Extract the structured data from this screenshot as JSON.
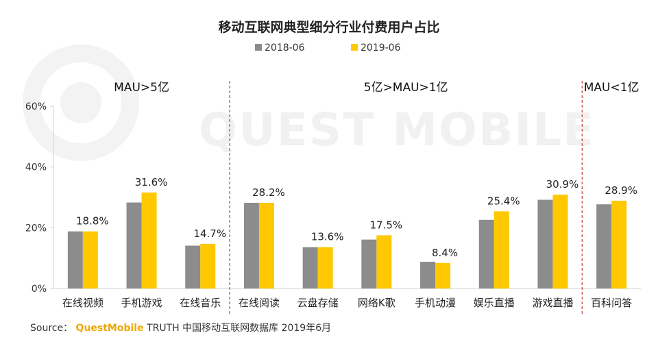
{
  "chart_data": {
    "type": "bar",
    "title": "移动互联网典型细分行业付费用户占比",
    "categories": [
      "在线视频",
      "手机游戏",
      "在线音乐",
      "在线阅读",
      "云盘存储",
      "网络K歌",
      "手机动漫",
      "娱乐直播",
      "游戏直播",
      "百科问答"
    ],
    "series": [
      {
        "name": "2018-06",
        "values": [
          18.8,
          28.3,
          14.1,
          28.2,
          13.6,
          16.1,
          8.8,
          22.6,
          29.2,
          27.7
        ],
        "color": "#8c8c8c"
      },
      {
        "name": "2019-06",
        "values": [
          18.8,
          31.6,
          14.7,
          28.2,
          13.6,
          17.5,
          8.4,
          25.4,
          30.9,
          28.9
        ],
        "color": "#ffc800"
      }
    ],
    "data_labels": [
      "18.8%",
      "31.6%",
      "14.7%",
      "28.2%",
      "13.6%",
      "17.5%",
      "8.4%",
      "25.4%",
      "30.9%",
      "28.9%"
    ],
    "ylim": [
      0,
      60
    ],
    "yticks": [
      0,
      20,
      40,
      60
    ],
    "ytick_labels": [
      "0%",
      "20%",
      "40%",
      "60%"
    ],
    "xlabel": "",
    "ylabel": "",
    "legend_position": "top-center",
    "grid": false,
    "groups": [
      {
        "label": "MAU>5亿",
        "categories": [
          "在线视频",
          "手机游戏",
          "在线音乐"
        ]
      },
      {
        "label": "5亿>MAU>1亿",
        "categories": [
          "在线阅读",
          "云盘存储",
          "网络K歌",
          "手机动漫",
          "娱乐直播",
          "游戏直播"
        ]
      },
      {
        "label": "MAU<1亿",
        "categories": [
          "百科问答"
        ]
      }
    ],
    "divider_color": "#c0392b"
  },
  "watermark": "QUEST MOBILE",
  "source": {
    "prefix": "Source：",
    "brand": "QuestMobile",
    "text": "TRUTH 中国移动互联网数据库 2019年6月"
  }
}
